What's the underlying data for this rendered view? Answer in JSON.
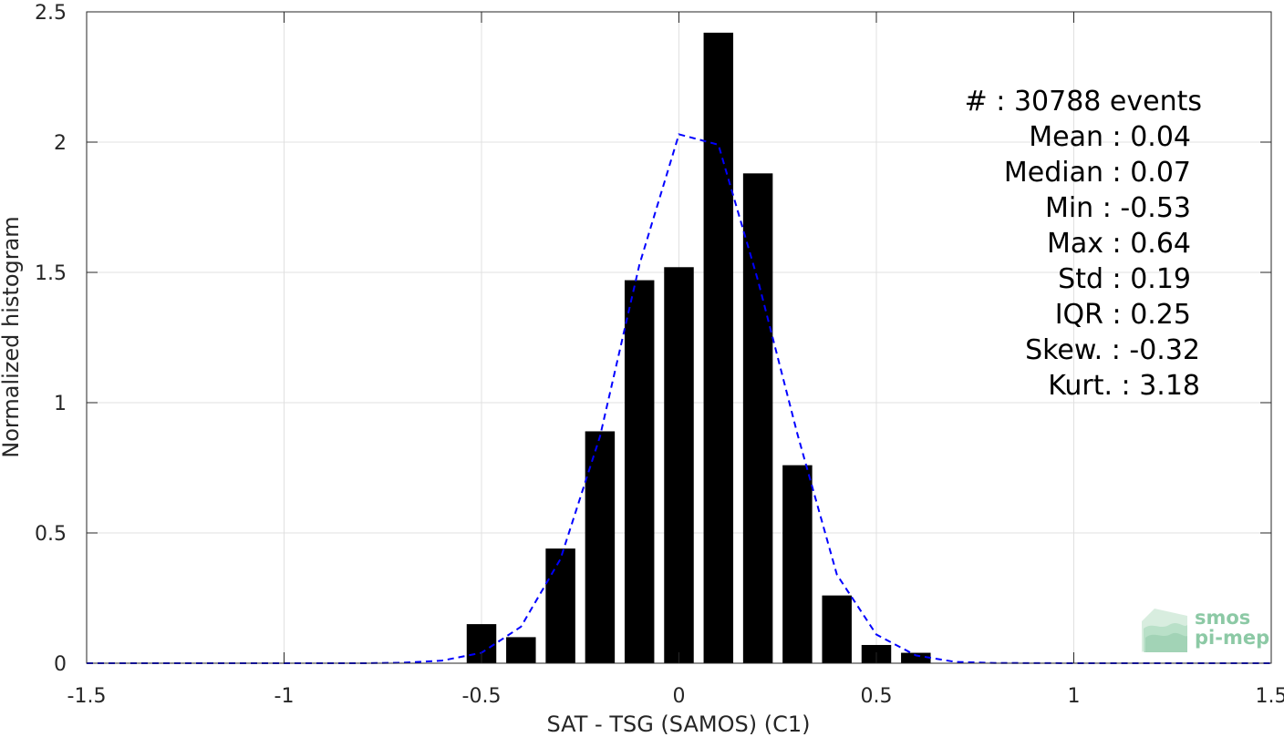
{
  "chart_data": {
    "type": "bar",
    "xlabel": "SAT - TSG (SAMOS) (C1)",
    "ylabel": "Normalized histogram",
    "xlim": [
      -1.5,
      1.5
    ],
    "ylim": [
      0,
      2.5
    ],
    "xticks": [
      "-1.5",
      "-1",
      "-0.5",
      "0",
      "0.5",
      "1",
      "1.5"
    ],
    "xtick_values": [
      -1.5,
      -1,
      -0.5,
      0,
      0.5,
      1,
      1.5
    ],
    "yticks": [
      "0",
      "0.5",
      "1",
      "1.5",
      "2",
      "2.5"
    ],
    "ytick_values": [
      0,
      0.5,
      1,
      1.5,
      2,
      2.5
    ],
    "grid": true,
    "bar_width": 0.075,
    "bars": {
      "x": [
        -0.5,
        -0.4,
        -0.3,
        -0.2,
        -0.1,
        0.0,
        0.1,
        0.2,
        0.3,
        0.4,
        0.5,
        0.6
      ],
      "values": [
        0.15,
        0.1,
        0.44,
        0.89,
        1.47,
        1.52,
        2.42,
        1.88,
        0.76,
        0.26,
        0.07,
        0.04
      ],
      "color": "#000000"
    },
    "fit_curve": {
      "style": "dashed",
      "color": "#0000ff",
      "x": [
        -1.5,
        -1.2,
        -1.0,
        -0.8,
        -0.7,
        -0.6,
        -0.5,
        -0.4,
        -0.3,
        -0.2,
        -0.1,
        0.0,
        0.1,
        0.2,
        0.3,
        0.4,
        0.5,
        0.6,
        0.7,
        0.8,
        1.0,
        1.2,
        1.5
      ],
      "y": [
        0,
        0,
        0,
        0,
        0.002,
        0.01,
        0.04,
        0.14,
        0.4,
        0.87,
        1.53,
        2.03,
        1.99,
        1.47,
        0.88,
        0.34,
        0.11,
        0.03,
        0.005,
        0.001,
        0,
        0,
        0
      ]
    },
    "annotations": [
      "#  : 30788 events",
      "Mean : 0.04",
      "Median : 0.07",
      "Min : -0.53",
      "Max : 0.64",
      "Std : 0.19",
      "IQR : 0.25",
      "Skew. : -0.32",
      "Kurt. : 3.18"
    ]
  },
  "logo": {
    "line1": "smos",
    "line2": "pi-mep",
    "color": "#8cc9a5"
  }
}
